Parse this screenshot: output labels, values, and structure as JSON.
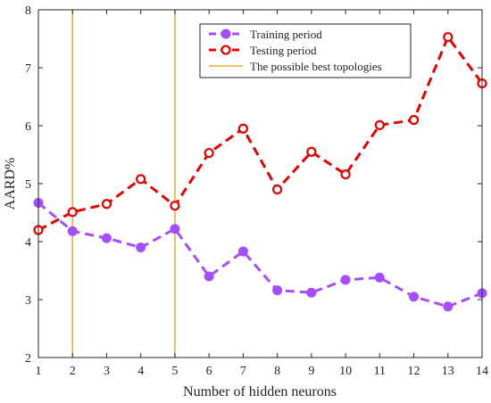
{
  "chart_data": {
    "type": "line",
    "xlabel": "Number of hidden neurons",
    "ylabel": "AARD%",
    "xlim": [
      1,
      14
    ],
    "ylim": [
      2,
      8
    ],
    "xticks": [
      1,
      2,
      3,
      4,
      5,
      6,
      7,
      8,
      9,
      10,
      11,
      12,
      13,
      14
    ],
    "yticks": [
      2,
      3,
      4,
      5,
      6,
      7,
      8
    ],
    "grid": false,
    "legend_position": "top-right",
    "x": [
      1,
      2,
      3,
      4,
      5,
      6,
      7,
      8,
      9,
      10,
      11,
      12,
      13,
      14
    ],
    "series": [
      {
        "name": "Training period",
        "color": "#a64dff",
        "style": "dashed",
        "marker": "filled-circle",
        "values": [
          4.67,
          4.18,
          4.06,
          3.9,
          4.22,
          3.4,
          3.83,
          3.16,
          3.12,
          3.34,
          3.38,
          3.05,
          2.88,
          3.11
        ]
      },
      {
        "name": "Testing period",
        "color": "#e60000",
        "style": "dashed",
        "marker": "open-circle",
        "values": [
          4.2,
          4.51,
          4.65,
          5.08,
          4.62,
          5.53,
          5.95,
          4.9,
          5.55,
          5.16,
          6.01,
          6.1,
          7.53,
          6.73
        ]
      }
    ],
    "vlines": {
      "name": "The possible best topologies",
      "color": "#f0a830",
      "x": [
        2,
        5
      ]
    }
  }
}
